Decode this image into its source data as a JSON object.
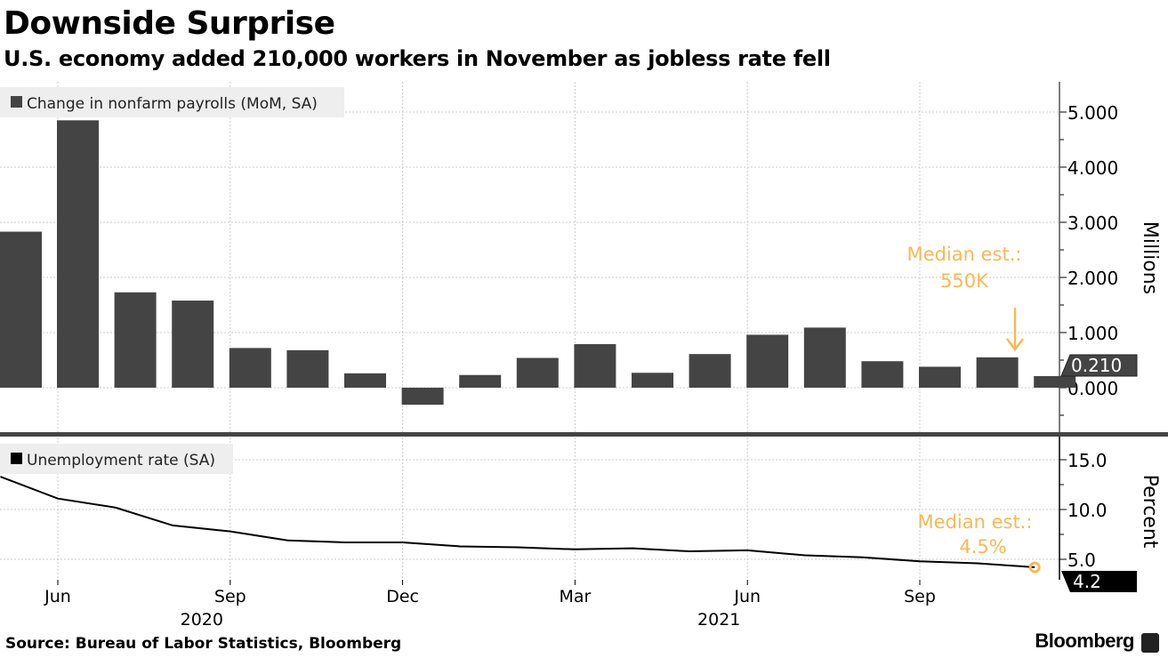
{
  "title": "Downside Surprise",
  "subtitle": "U.S. economy added 210,000 workers in November as jobless rate fell",
  "source": "Source: Bureau of Labor Statistics, Bloomberg",
  "brand": "Bloomberg",
  "colors": {
    "bar": "#444444",
    "line": "#000000",
    "annotation": "#f7b955",
    "grid": "#cccccc"
  },
  "chart_data": [
    {
      "type": "bar",
      "title": "Change in nonfarm payrolls (MoM, SA)",
      "legend": "Change in nonfarm payrolls (MoM, SA)",
      "legend_placement": "top-left",
      "categories": [
        "May 2020",
        "Jun 2020",
        "Jul 2020",
        "Aug 2020",
        "Sep 2020",
        "Oct 2020",
        "Nov 2020",
        "Dec 2020",
        "Jan 2021",
        "Feb 2021",
        "Mar 2021",
        "Apr 2021",
        "May 2021",
        "Jun 2021",
        "Jul 2021",
        "Aug 2021",
        "Sep 2021",
        "Oct 2021",
        "Nov 2021"
      ],
      "values": [
        2.83,
        4.85,
        1.73,
        1.58,
        0.72,
        0.68,
        0.26,
        -0.31,
        0.23,
        0.54,
        0.79,
        0.27,
        0.61,
        0.96,
        1.09,
        0.48,
        0.38,
        0.55,
        0.21
      ],
      "ylabel": "Millions",
      "ylim": [
        -0.8,
        5.5
      ],
      "yticks": [
        "0.000",
        "1.000",
        "2.000",
        "3.000",
        "4.000",
        "5.000"
      ],
      "last_value_label": "0.210",
      "annotation": {
        "line1": "Median est.:",
        "line2": "550K"
      }
    },
    {
      "type": "line",
      "title": "Unemployment rate (SA)",
      "legend": "Unemployment rate (SA)",
      "legend_placement": "top-left",
      "categories": [
        "May 2020",
        "Jun 2020",
        "Jul 2020",
        "Aug 2020",
        "Sep 2020",
        "Oct 2020",
        "Nov 2020",
        "Dec 2020",
        "Jan 2021",
        "Feb 2021",
        "Mar 2021",
        "Apr 2021",
        "May 2021",
        "Jun 2021",
        "Jul 2021",
        "Aug 2021",
        "Sep 2021",
        "Oct 2021",
        "Nov 2021"
      ],
      "values": [
        13.3,
        11.1,
        10.2,
        8.4,
        7.8,
        6.9,
        6.7,
        6.7,
        6.3,
        6.2,
        6.0,
        6.1,
        5.8,
        5.9,
        5.4,
        5.2,
        4.8,
        4.6,
        4.2
      ],
      "ylabel": "Percent",
      "ylim": [
        3,
        17.2
      ],
      "yticks": [
        "5.0",
        "10.0",
        "15.0"
      ],
      "last_value_label": "4.2",
      "annotation": {
        "line1": "Median est.:",
        "line2": "4.5%"
      }
    }
  ],
  "xaxis": {
    "months": [
      {
        "label": "Jun",
        "index": 1
      },
      {
        "label": "Sep",
        "index": 4
      },
      {
        "label": "Dec",
        "index": 7
      },
      {
        "label": "Mar",
        "index": 10
      },
      {
        "label": "Jun",
        "index": 13
      },
      {
        "label": "Sep",
        "index": 16
      }
    ],
    "years": [
      {
        "label": "2020",
        "index": 4
      },
      {
        "label": "2021",
        "index": 13
      }
    ]
  }
}
